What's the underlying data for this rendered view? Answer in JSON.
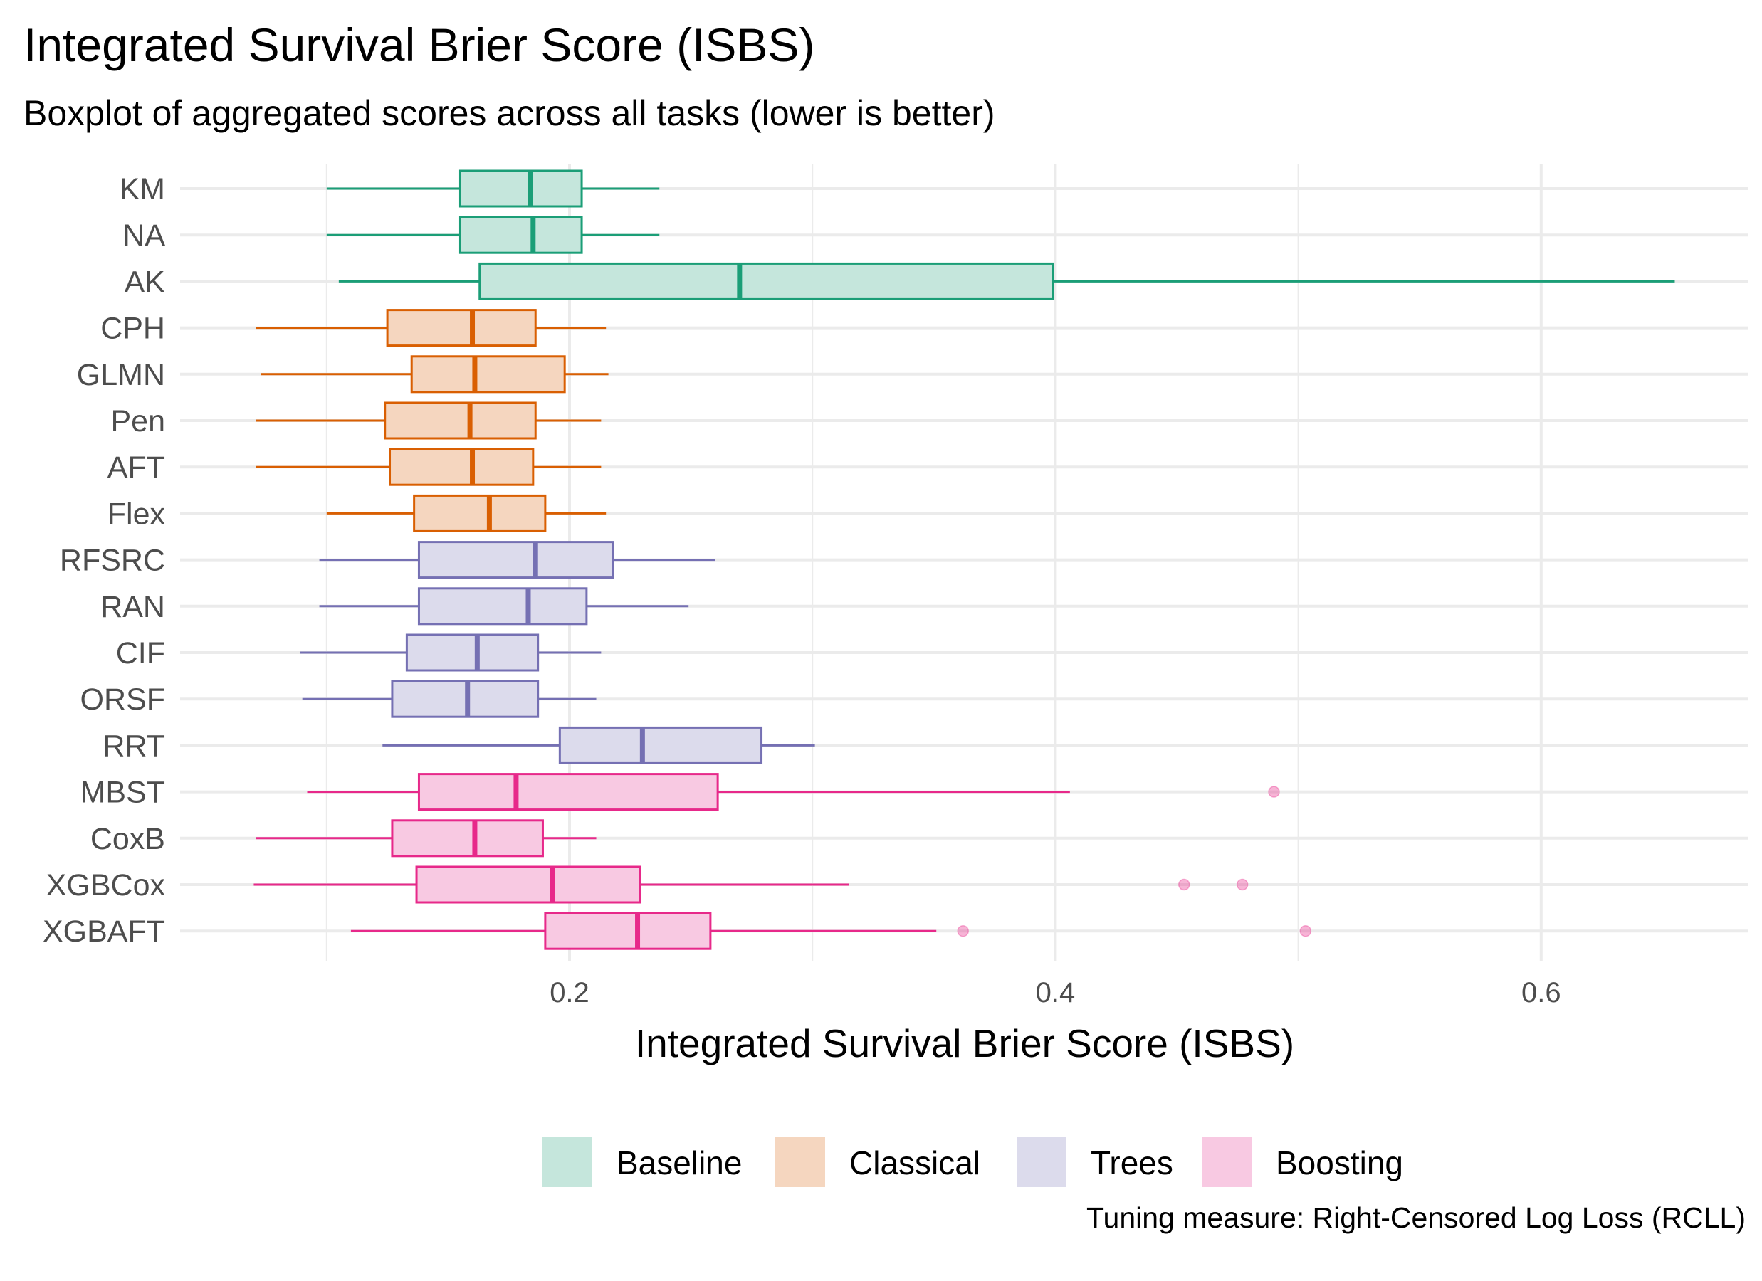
{
  "chart_data": {
    "type": "boxplot",
    "orientation": "horizontal",
    "title": "Integrated Survival Brier Score (ISBS)",
    "subtitle": "Boxplot of aggregated scores across all tasks (lower is better)",
    "xlabel": "Integrated Survival Brier Score (ISBS)",
    "ylabel": "",
    "caption": "Tuning measure: Right-Censored Log Loss (RCLL)",
    "xlim": [
      0.035,
      0.68
    ],
    "x_ticks": [
      0.2,
      0.4,
      0.6
    ],
    "x_tick_labels": [
      "0.2",
      "0.4",
      "0.6"
    ],
    "x_minor_ticks": [
      0.1,
      0.3,
      0.5
    ],
    "grid": true,
    "legend_position": "bottom",
    "groups": [
      {
        "name": "Baseline",
        "color": "#1b9e77",
        "fill": "#c5e6dc"
      },
      {
        "name": "Classical",
        "color": "#d95f02",
        "fill": "#f5d6bf"
      },
      {
        "name": "Trees",
        "color": "#7570b3",
        "fill": "#dcdbec"
      },
      {
        "name": "Boosting",
        "color": "#e7298a",
        "fill": "#f8c9e2"
      }
    ],
    "boxes": [
      {
        "label": "KM",
        "group": "Baseline",
        "whisker_low": 0.1,
        "q1": 0.155,
        "median": 0.184,
        "q3": 0.205,
        "whisker_high": 0.237,
        "outliers": []
      },
      {
        "label": "NA",
        "group": "Baseline",
        "whisker_low": 0.1,
        "q1": 0.155,
        "median": 0.185,
        "q3": 0.205,
        "whisker_high": 0.237,
        "outliers": []
      },
      {
        "label": "AK",
        "group": "Baseline",
        "whisker_low": 0.105,
        "q1": 0.163,
        "median": 0.27,
        "q3": 0.399,
        "whisker_high": 0.655,
        "outliers": []
      },
      {
        "label": "CPH",
        "group": "Classical",
        "whisker_low": 0.071,
        "q1": 0.125,
        "median": 0.16,
        "q3": 0.186,
        "whisker_high": 0.215,
        "outliers": []
      },
      {
        "label": "GLMN",
        "group": "Classical",
        "whisker_low": 0.073,
        "q1": 0.135,
        "median": 0.161,
        "q3": 0.198,
        "whisker_high": 0.216,
        "outliers": []
      },
      {
        "label": "Pen",
        "group": "Classical",
        "whisker_low": 0.071,
        "q1": 0.124,
        "median": 0.159,
        "q3": 0.186,
        "whisker_high": 0.213,
        "outliers": []
      },
      {
        "label": "AFT",
        "group": "Classical",
        "whisker_low": 0.071,
        "q1": 0.126,
        "median": 0.16,
        "q3": 0.185,
        "whisker_high": 0.213,
        "outliers": []
      },
      {
        "label": "Flex",
        "group": "Classical",
        "whisker_low": 0.1,
        "q1": 0.136,
        "median": 0.167,
        "q3": 0.19,
        "whisker_high": 0.215,
        "outliers": []
      },
      {
        "label": "RFSRC",
        "group": "Trees",
        "whisker_low": 0.097,
        "q1": 0.138,
        "median": 0.186,
        "q3": 0.218,
        "whisker_high": 0.26,
        "outliers": []
      },
      {
        "label": "RAN",
        "group": "Trees",
        "whisker_low": 0.097,
        "q1": 0.138,
        "median": 0.183,
        "q3": 0.207,
        "whisker_high": 0.249,
        "outliers": []
      },
      {
        "label": "CIF",
        "group": "Trees",
        "whisker_low": 0.089,
        "q1": 0.133,
        "median": 0.162,
        "q3": 0.187,
        "whisker_high": 0.213,
        "outliers": []
      },
      {
        "label": "ORSF",
        "group": "Trees",
        "whisker_low": 0.09,
        "q1": 0.127,
        "median": 0.158,
        "q3": 0.187,
        "whisker_high": 0.211,
        "outliers": []
      },
      {
        "label": "RRT",
        "group": "Trees",
        "whisker_low": 0.123,
        "q1": 0.196,
        "median": 0.23,
        "q3": 0.279,
        "whisker_high": 0.301,
        "outliers": []
      },
      {
        "label": "MBST",
        "group": "Boosting",
        "whisker_low": 0.092,
        "q1": 0.138,
        "median": 0.178,
        "q3": 0.261,
        "whisker_high": 0.406,
        "outliers": [
          0.49
        ]
      },
      {
        "label": "CoxB",
        "group": "Boosting",
        "whisker_low": 0.071,
        "q1": 0.127,
        "median": 0.161,
        "q3": 0.189,
        "whisker_high": 0.211,
        "outliers": []
      },
      {
        "label": "XGBCox",
        "group": "Boosting",
        "whisker_low": 0.07,
        "q1": 0.137,
        "median": 0.193,
        "q3": 0.229,
        "whisker_high": 0.315,
        "outliers": [
          0.453,
          0.477
        ]
      },
      {
        "label": "XGBAFT",
        "group": "Boosting",
        "whisker_low": 0.11,
        "q1": 0.19,
        "median": 0.228,
        "q3": 0.258,
        "whisker_high": 0.351,
        "outliers": [
          0.362,
          0.503
        ]
      }
    ]
  }
}
